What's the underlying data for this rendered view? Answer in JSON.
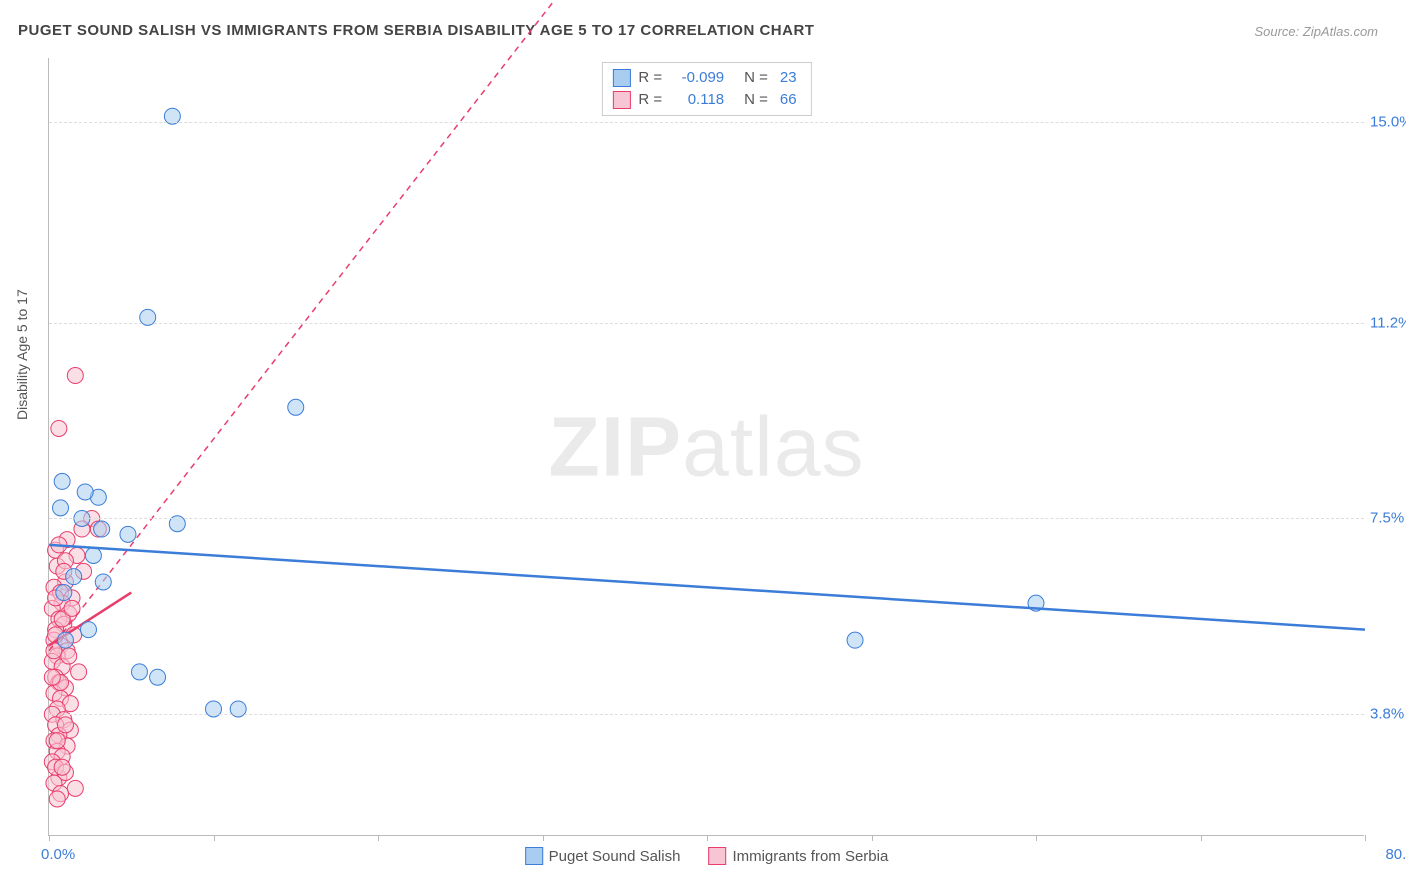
{
  "title": "PUGET SOUND SALISH VS IMMIGRANTS FROM SERBIA DISABILITY AGE 5 TO 17 CORRELATION CHART",
  "source": "Source: ZipAtlas.com",
  "y_axis_label": "Disability Age 5 to 17",
  "watermark_a": "ZIP",
  "watermark_b": "atlas",
  "chart": {
    "type": "scatter",
    "background_color": "#ffffff",
    "grid_color": "#dddddd",
    "axis_color": "#bbbbbb",
    "label_color": "#555555",
    "value_color": "#3b7dd8",
    "title_fontsize": 15,
    "label_fontsize": 14,
    "tick_fontsize": 15,
    "xlim": [
      0,
      80
    ],
    "ylim": [
      1.5,
      16.2
    ],
    "x_min_label": "0.0%",
    "x_max_label": "80.0%",
    "x_ticks": [
      0,
      10,
      20,
      30,
      40,
      50,
      60,
      70,
      80
    ],
    "y_ticks": [
      {
        "v": 3.8,
        "label": "3.8%"
      },
      {
        "v": 7.5,
        "label": "7.5%"
      },
      {
        "v": 11.2,
        "label": "11.2%"
      },
      {
        "v": 15.0,
        "label": "15.0%"
      }
    ],
    "marker_radius": 8,
    "marker_opacity": 0.55,
    "series": [
      {
        "name": "Puget Sound Salish",
        "fill": "#a9cdf0",
        "stroke": "#3b7dd8",
        "trend": {
          "x1": 0,
          "y1": 7.0,
          "x2": 80,
          "y2": 5.4,
          "width": 2.5,
          "dash": "none"
        },
        "r_label": "-0.099",
        "n_label": "23",
        "points": [
          [
            7.5,
            15.1
          ],
          [
            6.0,
            11.3
          ],
          [
            15.0,
            9.6
          ],
          [
            7.8,
            7.4
          ],
          [
            0.8,
            8.2
          ],
          [
            2.0,
            7.5
          ],
          [
            3.2,
            7.3
          ],
          [
            4.8,
            7.2
          ],
          [
            1.5,
            6.4
          ],
          [
            3.3,
            6.3
          ],
          [
            0.9,
            6.1
          ],
          [
            2.4,
            5.4
          ],
          [
            5.5,
            4.6
          ],
          [
            6.6,
            4.5
          ],
          [
            10.0,
            3.9
          ],
          [
            11.5,
            3.9
          ],
          [
            0.7,
            7.7
          ],
          [
            3.0,
            7.9
          ],
          [
            2.2,
            8.0
          ],
          [
            1.0,
            5.2
          ],
          [
            2.7,
            6.8
          ],
          [
            49.0,
            5.2
          ],
          [
            60.0,
            5.9
          ]
        ]
      },
      {
        "name": "Immigrants from Serbia",
        "fill": "#f7c5d4",
        "stroke": "#e83e6b",
        "trend": {
          "x1": 0,
          "y1": 5.0,
          "x2": 40,
          "y2": 21.0,
          "width": 1.5,
          "dash": "6,5"
        },
        "short_trend": {
          "x1": 0,
          "y1": 5.1,
          "x2": 5,
          "y2": 6.1,
          "width": 2.5
        },
        "r_label": "0.118",
        "n_label": "66",
        "points": [
          [
            1.6,
            10.2
          ],
          [
            0.6,
            9.2
          ],
          [
            2.6,
            7.5
          ],
          [
            3.0,
            7.3
          ],
          [
            2.0,
            7.3
          ],
          [
            1.1,
            7.1
          ],
          [
            0.4,
            6.9
          ],
          [
            1.7,
            6.8
          ],
          [
            0.5,
            6.6
          ],
          [
            2.1,
            6.5
          ],
          [
            1.0,
            6.3
          ],
          [
            0.3,
            6.2
          ],
          [
            0.7,
            6.1
          ],
          [
            1.4,
            6.0
          ],
          [
            0.8,
            5.9
          ],
          [
            0.2,
            5.8
          ],
          [
            1.2,
            5.7
          ],
          [
            0.6,
            5.6
          ],
          [
            0.9,
            5.5
          ],
          [
            0.4,
            5.4
          ],
          [
            1.5,
            5.3
          ],
          [
            0.3,
            5.2
          ],
          [
            0.7,
            5.1
          ],
          [
            1.1,
            5.0
          ],
          [
            0.5,
            4.9
          ],
          [
            0.2,
            4.8
          ],
          [
            0.8,
            4.7
          ],
          [
            1.8,
            4.6
          ],
          [
            0.4,
            4.5
          ],
          [
            0.6,
            4.4
          ],
          [
            1.0,
            4.3
          ],
          [
            0.3,
            4.2
          ],
          [
            0.7,
            4.1
          ],
          [
            1.3,
            4.0
          ],
          [
            0.5,
            3.9
          ],
          [
            0.2,
            3.8
          ],
          [
            0.9,
            3.7
          ],
          [
            0.4,
            3.6
          ],
          [
            1.3,
            3.5
          ],
          [
            0.6,
            3.4
          ],
          [
            0.3,
            3.3
          ],
          [
            1.1,
            3.2
          ],
          [
            0.5,
            3.1
          ],
          [
            0.8,
            3.0
          ],
          [
            0.2,
            2.9
          ],
          [
            0.6,
            2.6
          ],
          [
            0.4,
            2.8
          ],
          [
            1.0,
            2.7
          ],
          [
            0.3,
            2.5
          ],
          [
            1.6,
            2.4
          ],
          [
            0.7,
            2.3
          ],
          [
            0.5,
            2.2
          ],
          [
            1.0,
            6.7
          ],
          [
            1.2,
            4.9
          ],
          [
            0.8,
            5.6
          ],
          [
            0.4,
            6.0
          ],
          [
            0.9,
            6.5
          ],
          [
            0.6,
            7.0
          ],
          [
            1.4,
            5.8
          ],
          [
            0.3,
            5.0
          ],
          [
            0.7,
            4.4
          ],
          [
            1.0,
            3.6
          ],
          [
            0.5,
            3.3
          ],
          [
            0.8,
            2.8
          ],
          [
            0.4,
            5.3
          ],
          [
            0.2,
            4.5
          ]
        ]
      }
    ]
  },
  "stats_legend_labels": {
    "r": "R =",
    "n": "N ="
  }
}
